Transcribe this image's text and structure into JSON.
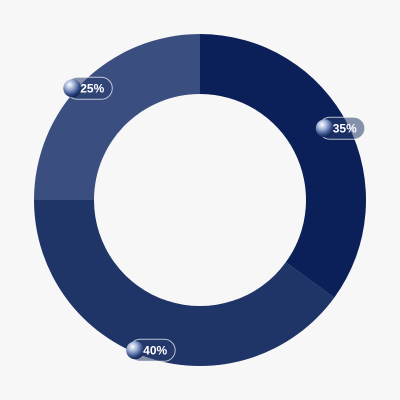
{
  "chart_data": {
    "type": "donut",
    "values": [
      35,
      40,
      25
    ],
    "value_labels": [
      "35%",
      "40%",
      "25%"
    ],
    "colors": [
      "#0b1f58",
      "#1f3567",
      "#3a4f80"
    ]
  }
}
